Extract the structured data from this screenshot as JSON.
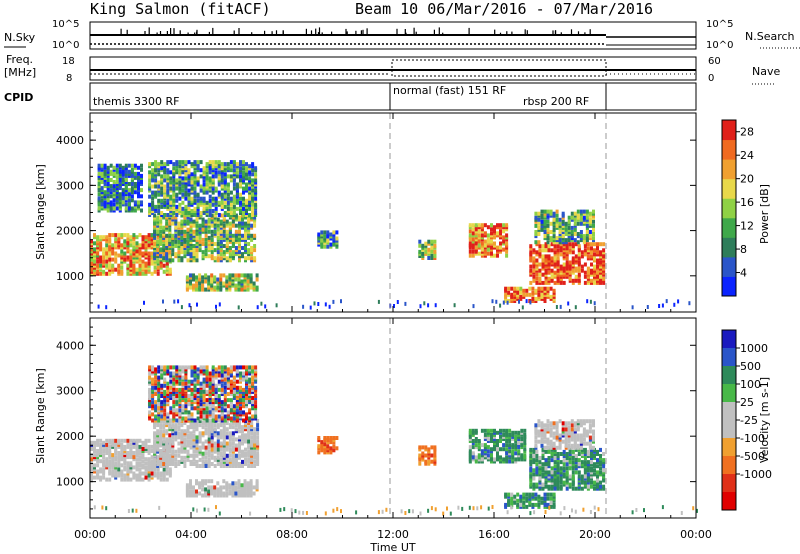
{
  "header": {
    "station": "King Salmon (fitACF)",
    "beam_info": "Beam 10  06/Mar/2016 - 07/Mar/2016"
  },
  "strips": {
    "nsky_label": "N.Sky",
    "nsky_ticks": [
      "10^5",
      "10^0"
    ],
    "nsearch_label": "N.Search",
    "nsearch_ticks": [
      "10^5",
      "10^0"
    ],
    "freq_label": "Freq.",
    "freq_unit": "[MHz]",
    "freq_ticks": [
      "18",
      "8"
    ],
    "nave_label": "Nave",
    "nave_ticks": [
      "60",
      "0"
    ],
    "cpid_label": "CPID",
    "cpid_segments": [
      {
        "name": "themis 3300 RF",
        "start_h": 0,
        "end_h": 12
      },
      {
        "name": "normal (fast) 151 RF",
        "start_h": 12,
        "end_h": 20.6
      },
      {
        "name": "rbsp 200 RF",
        "start_h": 12,
        "end_h": 20.6
      }
    ]
  },
  "colors": {
    "power": [
      "#0b24ff",
      "#2a55c9",
      "#2e7d5a",
      "#3fa84a",
      "#8fd145",
      "#e8d84a",
      "#f0a030",
      "#f06a20",
      "#e0201a"
    ],
    "velocity": [
      "#1a1abf",
      "#2a55c9",
      "#2e8a5a",
      "#48b848",
      "#c0c0c0",
      "#c0c0c0",
      "#f0a030",
      "#f07020",
      "#e03018",
      "#e00000"
    ]
  },
  "chart_data": [
    {
      "type": "heatmap",
      "title": "",
      "xlabel": "Time UT",
      "ylabel": "Slant Range [km]",
      "xlim": [
        0,
        24
      ],
      "ylim": [
        200,
        4600
      ],
      "x_ticks": [
        "00:00",
        "04:00",
        "08:00",
        "12:00",
        "16:00",
        "20:00",
        "00:00"
      ],
      "y_ticks": [
        "1000",
        "2000",
        "3000",
        "4000"
      ],
      "colorbar": {
        "label": "Power [dB]",
        "ticks": [
          "4",
          "8",
          "12",
          "16",
          "20",
          "24",
          "28"
        ],
        "range": [
          0,
          30
        ]
      },
      "regions": [
        {
          "t0": 0,
          "t1": 3.2,
          "r0": 1000,
          "r1": 1900,
          "level": 0.7
        },
        {
          "t0": 2.5,
          "t1": 6.5,
          "r0": 1300,
          "r1": 2300,
          "level": 0.45
        },
        {
          "t0": 3.8,
          "t1": 6.6,
          "r0": 650,
          "r1": 1000,
          "level": 0.5
        },
        {
          "t0": 0.3,
          "t1": 2.0,
          "r0": 2400,
          "r1": 3400,
          "level": 0.25
        },
        {
          "t0": 2.3,
          "t1": 6.6,
          "r0": 2300,
          "r1": 3500,
          "level": 0.35
        },
        {
          "t0": 9.0,
          "t1": 9.8,
          "r0": 1600,
          "r1": 1950,
          "level": 0.3
        },
        {
          "t0": 13.0,
          "t1": 13.6,
          "r0": 1350,
          "r1": 1750,
          "level": 0.5
        },
        {
          "t0": 15.0,
          "t1": 16.5,
          "r0": 1400,
          "r1": 2100,
          "level": 0.8
        },
        {
          "t0": 16.4,
          "t1": 18.4,
          "r0": 400,
          "r1": 700,
          "level": 0.85
        },
        {
          "t0": 17.4,
          "t1": 20.4,
          "r0": 800,
          "r1": 1700,
          "level": 0.9
        },
        {
          "t0": 17.6,
          "t1": 20.0,
          "r0": 1700,
          "r1": 2400,
          "level": 0.4
        }
      ]
    },
    {
      "type": "heatmap",
      "title": "",
      "xlabel": "Time UT",
      "ylabel": "Slant Range [km]",
      "xlim": [
        0,
        24
      ],
      "ylim": [
        200,
        4600
      ],
      "x_ticks": [
        "00:00",
        "04:00",
        "08:00",
        "12:00",
        "16:00",
        "20:00",
        "00:00"
      ],
      "y_ticks": [
        "1000",
        "2000",
        "3000",
        "4000"
      ],
      "colorbar": {
        "label": "Velocity [m s-1]",
        "ticks": [
          "1000",
          "500",
          "100",
          "25",
          "-25",
          "-100",
          "-500",
          "-1000"
        ]
      },
      "regions": [
        {
          "t0": 0,
          "t1": 3.2,
          "r0": 1000,
          "r1": 1900,
          "class": "ground"
        },
        {
          "t0": 2.5,
          "t1": 6.6,
          "r0": 1300,
          "r1": 2300,
          "class": "ground"
        },
        {
          "t0": 3.8,
          "t1": 6.6,
          "r0": 650,
          "r1": 1000,
          "class": "ground"
        },
        {
          "t0": 2.3,
          "t1": 6.6,
          "r0": 2300,
          "r1": 3500,
          "class": "mixed"
        },
        {
          "t0": 9.0,
          "t1": 9.8,
          "r0": 1600,
          "r1": 1950,
          "class": "negative"
        },
        {
          "t0": 13.0,
          "t1": 13.6,
          "r0": 1350,
          "r1": 1750,
          "class": "negative"
        },
        {
          "t0": 15.0,
          "t1": 17.2,
          "r0": 1400,
          "r1": 2100,
          "class": "positive"
        },
        {
          "t0": 16.4,
          "t1": 18.4,
          "r0": 400,
          "r1": 700,
          "class": "positive"
        },
        {
          "t0": 17.4,
          "t1": 20.4,
          "r0": 800,
          "r1": 1700,
          "class": "positive"
        },
        {
          "t0": 17.6,
          "t1": 20.0,
          "r0": 1700,
          "r1": 2300,
          "class": "ground"
        }
      ]
    }
  ]
}
